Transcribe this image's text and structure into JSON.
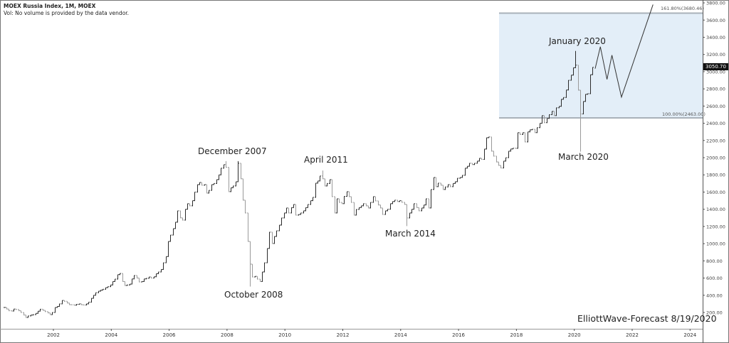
{
  "header": {
    "title": "MOEX Russia Index, 1M, MOEX",
    "subtitle": "Vol: No volume is provided by the data vendor."
  },
  "watermark": "ElliottWave-Forecast 8/19/2020",
  "current_price": "3050.70",
  "fib_box": {
    "upper_label": "161.80%(3680.46)",
    "lower_label": "100.00%(2463.00)",
    "upper": 3680.46,
    "lower": 2463.0,
    "start": 2017.4,
    "fill": "#e3eef8",
    "line": "#a9b1ba"
  },
  "annotations": [
    {
      "label": "December 2007"
    },
    {
      "label": "October 2008"
    },
    {
      "label": "April 2011"
    },
    {
      "label": "March 2014"
    },
    {
      "label": "January 2020"
    },
    {
      "label": "March 2020"
    }
  ],
  "chart_data": {
    "type": "ohlc-bar",
    "interval": "1M",
    "first_month": "2000-04",
    "closes": [
      258,
      240,
      220,
      217,
      240,
      235,
      220,
      200,
      170,
      142,
      160,
      170,
      175,
      190,
      215,
      238,
      225,
      210,
      195,
      175,
      200,
      258,
      270,
      300,
      340,
      330,
      310,
      291,
      290,
      285,
      295,
      300,
      290,
      287,
      300,
      320,
      365,
      400,
      430,
      448,
      460,
      470,
      489,
      500,
      520,
      560,
      588,
      640,
      654,
      560,
      514,
      520,
      530,
      590,
      630,
      600,
      555,
      560,
      590,
      597,
      613,
      600,
      615,
      650,
      671,
      700,
      778,
      850,
      1026,
      1100,
      1175,
      1250,
      1382,
      1300,
      1274,
      1400,
      1465,
      1440,
      1500,
      1600,
      1687,
      1712,
      1680,
      1687,
      1588,
      1620,
      1687,
      1700,
      1745,
      1800,
      1878,
      1919,
      1888,
      1605,
      1650,
      1671,
      1720,
      1935,
      1754,
      1506,
      1357,
      1026,
      762,
      613,
      620,
      588,
      560,
      671,
      778,
      944,
      1134,
      1002,
      1084,
      1150,
      1216,
      1299,
      1357,
      1415,
      1357,
      1420,
      1456,
      1332,
      1340,
      1357,
      1382,
      1420,
      1456,
      1500,
      1539,
      1704,
      1729,
      1787,
      1754,
      1671,
      1700,
      1745,
      1547,
      1357,
      1522,
      1480,
      1465,
      1550,
      1605,
      1547,
      1480,
      1332,
      1398,
      1420,
      1440,
      1465,
      1440,
      1415,
      1480,
      1547,
      1497,
      1450,
      1415,
      1340,
      1382,
      1400,
      1465,
      1490,
      1506,
      1490,
      1500,
      1481,
      1456,
      1299,
      1357,
      1400,
      1465,
      1420,
      1382,
      1415,
      1450,
      1522,
      1415,
      1630,
      1770,
      1663,
      1704,
      1680,
      1630,
      1660,
      1687,
      1663,
      1700,
      1720,
      1761,
      1770,
      1795,
      1878,
      1900,
      1935,
      1920,
      1935,
      1960,
      1993,
      1980,
      2100,
      2232,
      2241,
      2076,
      2018,
      1950,
      1910,
      1880,
      1960,
      2000,
      2076,
      2101,
      2110,
      2109,
      2291,
      2270,
      2291,
      2183,
      2300,
      2324,
      2330,
      2291,
      2349,
      2400,
      2489,
      2407,
      2456,
      2500,
      2539,
      2489,
      2580,
      2597,
      2679,
      2700,
      2787,
      2900,
      2960,
      3046,
      3076,
      2785,
      2509,
      2654,
      2737,
      2744,
      2965,
      3050.7
    ],
    "extremes": [
      {
        "month": "2007-12",
        "high": 1960
      },
      {
        "month": "2008-05",
        "high": 1960
      },
      {
        "month": "2008-10",
        "low": 506
      },
      {
        "month": "2011-04",
        "high": 1850
      },
      {
        "month": "2014-03",
        "low": 1208
      },
      {
        "month": "2020-01",
        "high": 3241
      },
      {
        "month": "2020-03",
        "low": 2074
      }
    ],
    "forecast_path": [
      [
        2020.72,
        3035
      ],
      [
        2020.9,
        3290
      ],
      [
        2021.13,
        2910
      ],
      [
        2021.3,
        3192
      ],
      [
        2021.63,
        2704
      ],
      [
        2022.72,
        3780
      ]
    ],
    "y_ticks": [
      "200.00",
      "400.00",
      "600.00",
      "800.00",
      "1000.00",
      "1200.00",
      "1400.00",
      "1600.00",
      "1800.00",
      "2000.00",
      "2200.00",
      "2400.00",
      "2600.00",
      "2800.00",
      "3000.00",
      "3200.00",
      "3400.00",
      "3600.00",
      "3800.00"
    ],
    "x_ticks": [
      "2002",
      "2004",
      "2006",
      "2008",
      "2010",
      "2012",
      "2014",
      "2016",
      "2018",
      "2020",
      "2022",
      "2024"
    ],
    "ylim": [
      200,
      3800
    ],
    "xlabel": "",
    "ylabel": "",
    "grid": false,
    "colors": {
      "up": "#2b2b2b",
      "down": "#9a9a9a",
      "forecast": "#333333"
    }
  }
}
